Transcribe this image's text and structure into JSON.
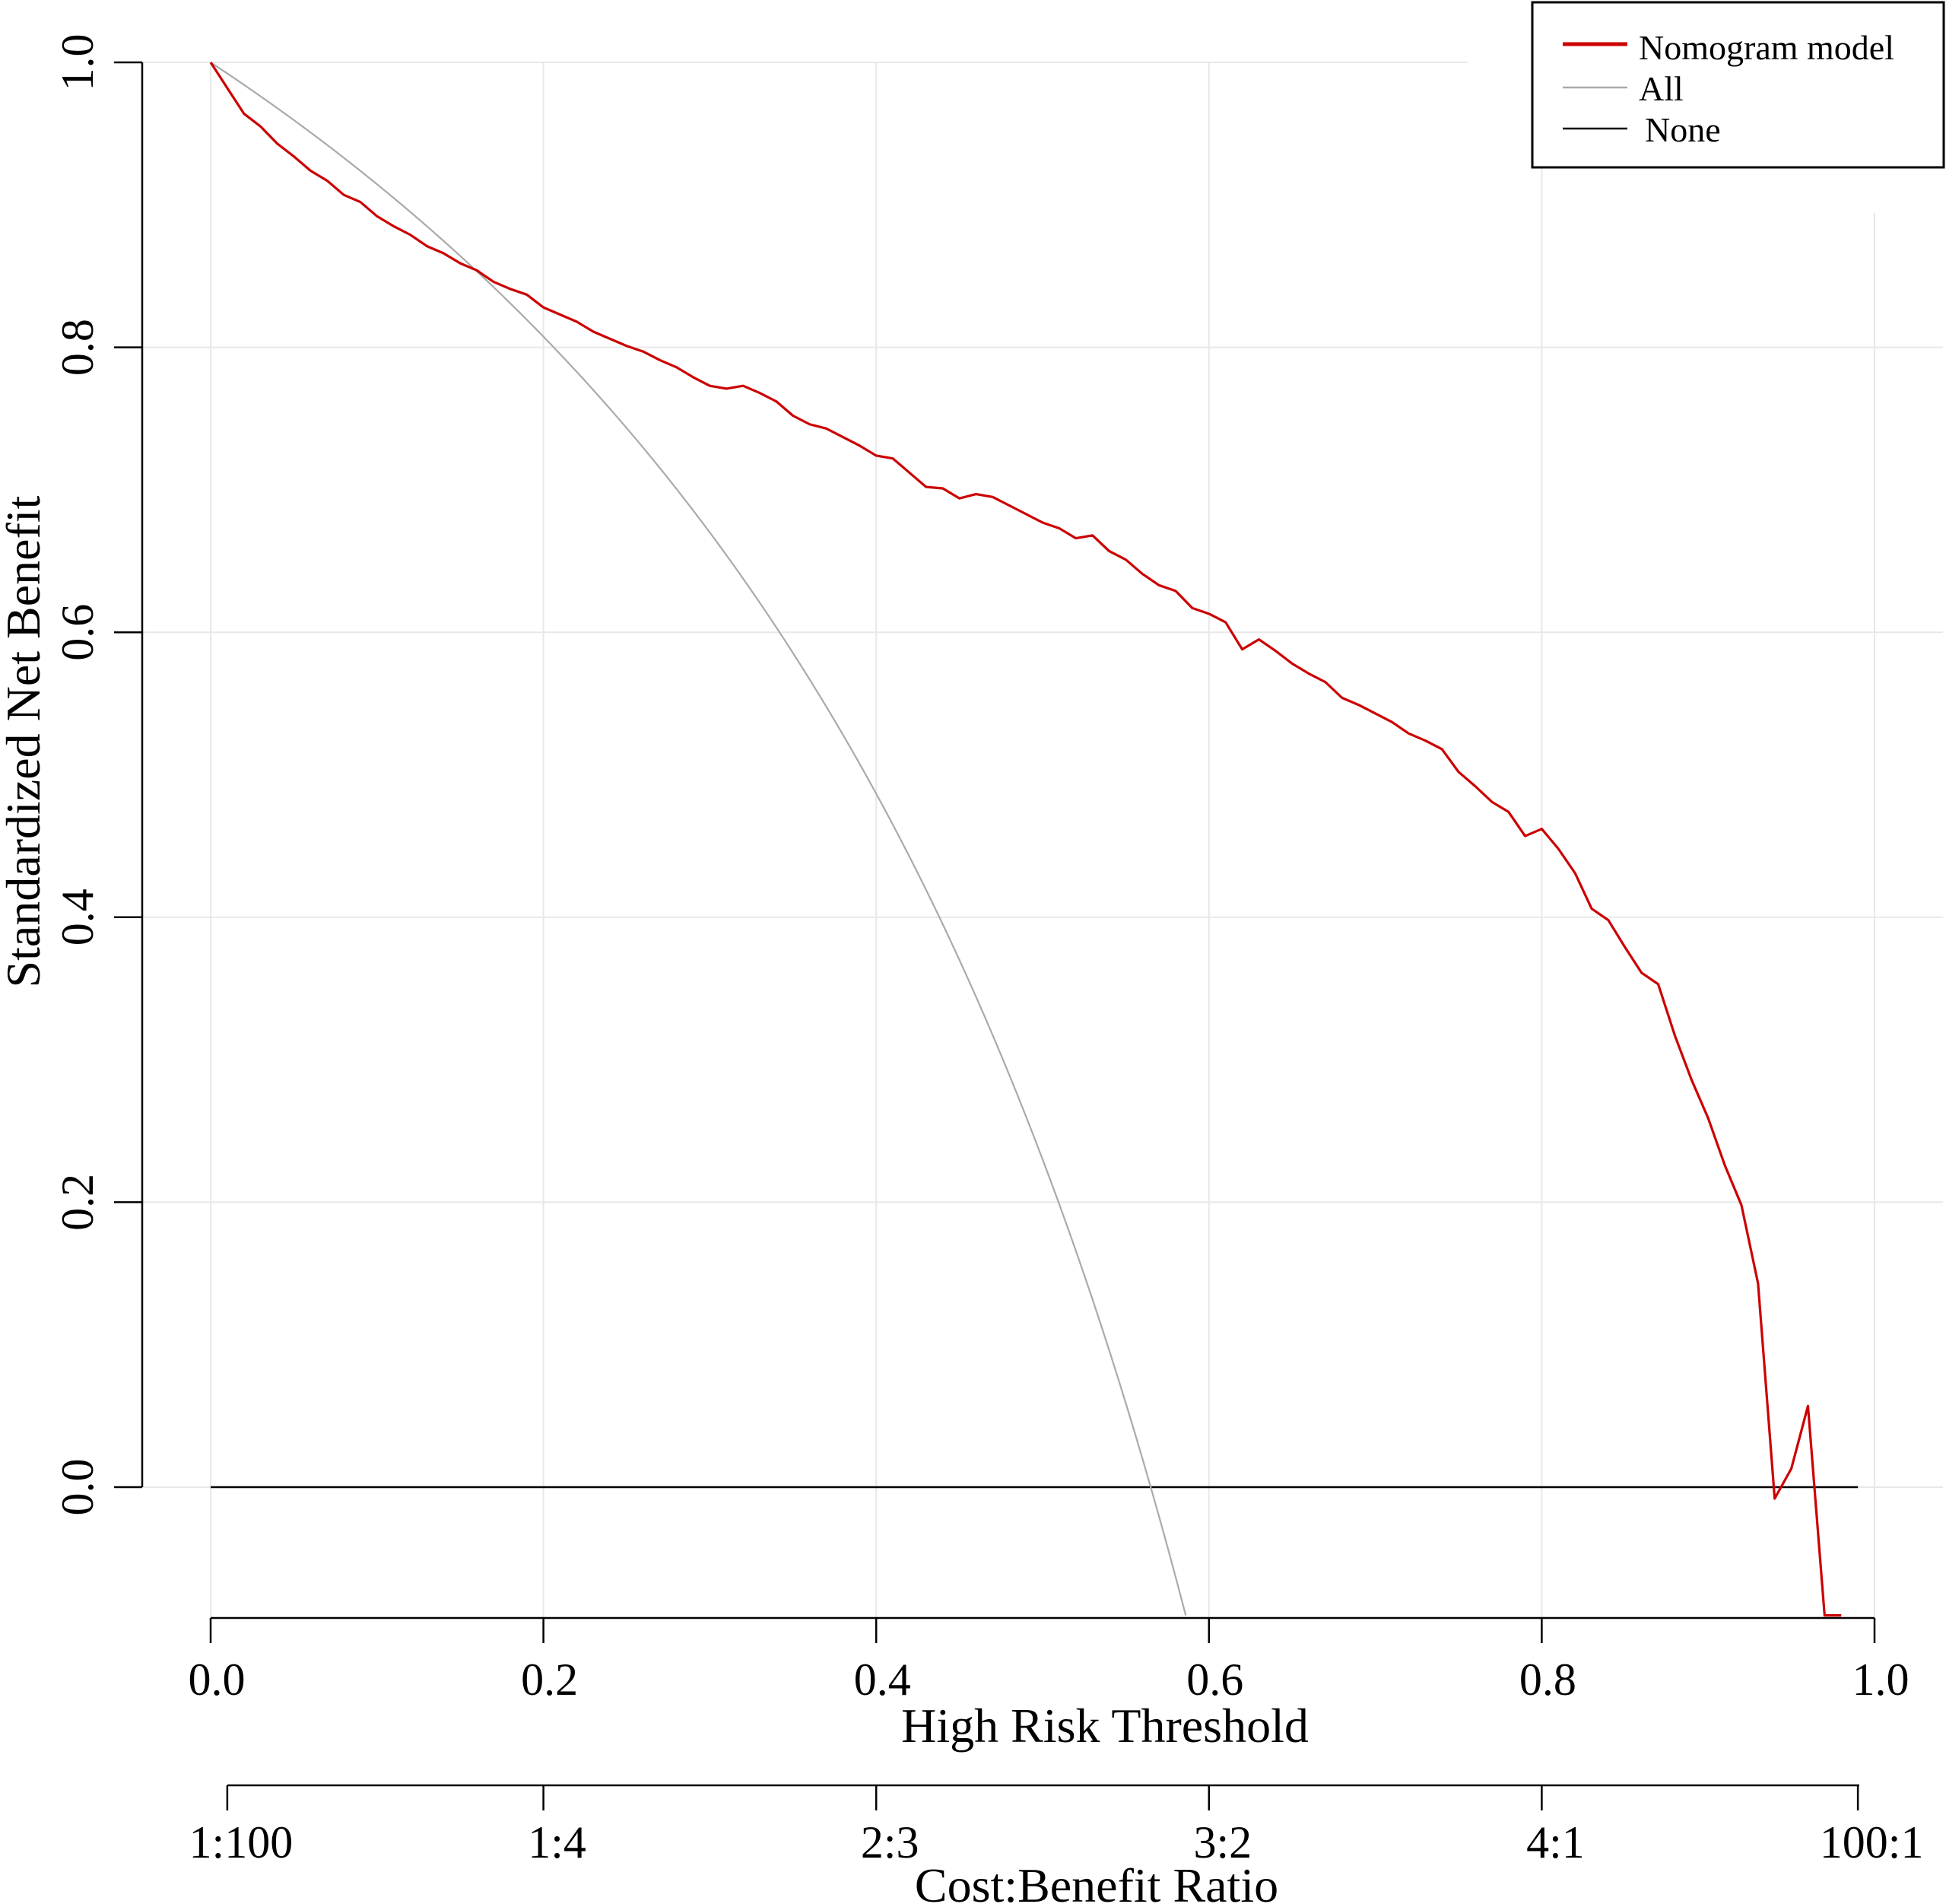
{
  "chart_data": {
    "type": "line",
    "xlabel": "High Risk Threshold",
    "ylabel": "Standardized Net Benefit",
    "xlim": [
      0,
      1
    ],
    "ylim": [
      -0.09,
      1
    ],
    "x_ticks": [
      "0.0",
      "0.2",
      "0.4",
      "0.6",
      "0.8",
      "1.0"
    ],
    "x_tick_values": [
      0,
      0.2,
      0.4,
      0.6,
      0.8,
      1.0
    ],
    "y_ticks": [
      "0.0",
      "0.2",
      "0.4",
      "0.6",
      "0.8",
      "1.0"
    ],
    "y_tick_values": [
      0,
      0.2,
      0.4,
      0.6,
      0.8,
      1.0
    ],
    "secondary_x_axis": {
      "label": "Cost:Benefit Ratio",
      "ticks": [
        "1:100",
        "1:4",
        "2:3",
        "3:2",
        "4:1",
        "100:1"
      ],
      "tick_positions": [
        0.01,
        0.2,
        0.4,
        0.6,
        0.8,
        0.99
      ]
    },
    "grid": true,
    "legend_position": "top-right",
    "legend": [
      {
        "name": "Nomogram model",
        "color": "#cc0000"
      },
      {
        "name": "All",
        "color": "#aaaaaa"
      },
      {
        "name": "None",
        "color": "#000000"
      }
    ],
    "series": [
      {
        "name": "Nomogram model",
        "color": "#cc0000",
        "x": [
          0.0,
          0.01,
          0.02,
          0.03,
          0.04,
          0.05,
          0.06,
          0.07,
          0.08,
          0.09,
          0.1,
          0.11,
          0.12,
          0.13,
          0.14,
          0.15,
          0.16,
          0.17,
          0.18,
          0.19,
          0.2,
          0.21,
          0.22,
          0.23,
          0.24,
          0.25,
          0.26,
          0.27,
          0.28,
          0.29,
          0.3,
          0.31,
          0.32,
          0.33,
          0.34,
          0.35,
          0.36,
          0.37,
          0.38,
          0.39,
          0.4,
          0.41,
          0.42,
          0.43,
          0.44,
          0.45,
          0.46,
          0.47,
          0.48,
          0.49,
          0.5,
          0.51,
          0.52,
          0.53,
          0.54,
          0.55,
          0.56,
          0.57,
          0.58,
          0.59,
          0.6,
          0.61,
          0.62,
          0.63,
          0.64,
          0.65,
          0.66,
          0.67,
          0.68,
          0.69,
          0.7,
          0.71,
          0.72,
          0.73,
          0.74,
          0.75,
          0.76,
          0.77,
          0.78,
          0.79,
          0.8,
          0.81,
          0.82,
          0.83,
          0.84,
          0.85,
          0.86,
          0.87,
          0.88,
          0.89,
          0.9,
          0.91,
          0.92,
          0.93,
          0.94,
          0.95,
          0.96,
          0.97,
          0.98
        ],
        "y": [
          1.0,
          0.982,
          0.964,
          0.955,
          0.943,
          0.934,
          0.924,
          0.917,
          0.907,
          0.902,
          0.892,
          0.885,
          0.879,
          0.871,
          0.866,
          0.859,
          0.854,
          0.846,
          0.841,
          0.837,
          0.828,
          0.823,
          0.818,
          0.811,
          0.806,
          0.801,
          0.797,
          0.791,
          0.786,
          0.779,
          0.773,
          0.771,
          0.773,
          0.768,
          0.762,
          0.752,
          0.746,
          0.743,
          0.737,
          0.731,
          0.724,
          0.722,
          0.712,
          0.702,
          0.701,
          0.694,
          0.697,
          0.695,
          0.689,
          0.683,
          0.677,
          0.673,
          0.666,
          0.668,
          0.657,
          0.651,
          0.641,
          0.633,
          0.629,
          0.617,
          0.613,
          0.607,
          0.588,
          0.595,
          0.587,
          0.578,
          0.571,
          0.565,
          0.554,
          0.549,
          0.543,
          0.537,
          0.529,
          0.524,
          0.518,
          0.502,
          0.492,
          0.481,
          0.474,
          0.457,
          0.462,
          0.448,
          0.431,
          0.406,
          0.398,
          0.379,
          0.361,
          0.353,
          0.317,
          0.286,
          0.259,
          0.226,
          0.198,
          0.143,
          -0.008,
          0.013,
          0.057,
          -0.09,
          -0.09
        ]
      },
      {
        "name": "All",
        "color": "#aaaaaa",
        "formula": "1 - p/(1-p) * (1-prevalence)/prevalence, prevalence ≈ 0.565"
      },
      {
        "name": "None",
        "color": "#000000",
        "x": [
          0.0,
          0.99
        ],
        "y": [
          0.0,
          0.0
        ]
      }
    ]
  }
}
